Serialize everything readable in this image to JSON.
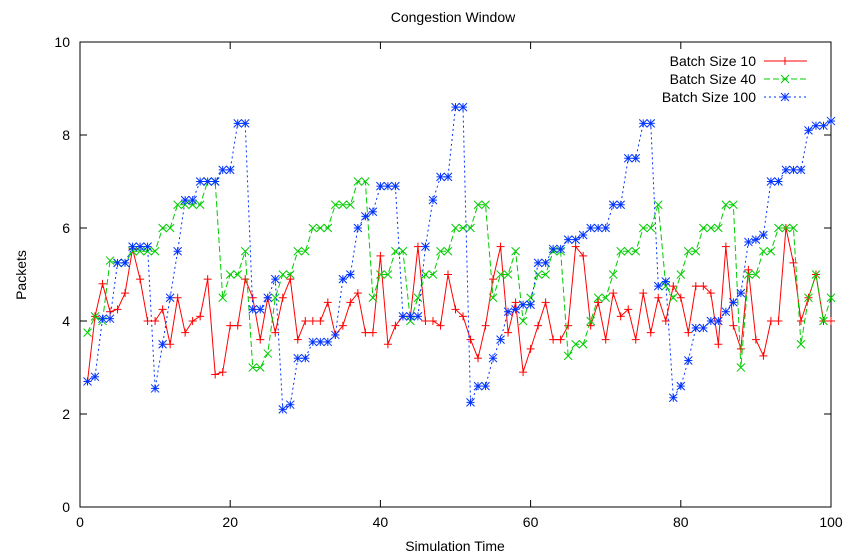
{
  "chart_data": {
    "type": "line",
    "title": "Congestion Window",
    "xlabel": "Simulation Time",
    "ylabel": "Packets",
    "xlim": [
      0,
      100
    ],
    "ylim": [
      0,
      10
    ],
    "xticks": [
      0,
      20,
      40,
      60,
      80,
      100
    ],
    "yticks": [
      0,
      2,
      4,
      6,
      8,
      10
    ],
    "xtick_labels": [
      "0",
      "20",
      "40",
      "60",
      "80",
      "100"
    ],
    "ytick_labels": [
      "0",
      "2",
      "4",
      "6",
      "8",
      "10"
    ],
    "grid": false,
    "legend_position": "top-right",
    "x": [
      1,
      2,
      3,
      4,
      5,
      6,
      7,
      8,
      9,
      10,
      11,
      12,
      13,
      14,
      15,
      16,
      17,
      18,
      19,
      20,
      21,
      22,
      23,
      24,
      25,
      26,
      27,
      28,
      29,
      30,
      31,
      32,
      33,
      34,
      35,
      36,
      37,
      38,
      39,
      40,
      41,
      42,
      43,
      44,
      45,
      46,
      47,
      48,
      49,
      50,
      51,
      52,
      53,
      54,
      55,
      56,
      57,
      58,
      59,
      60,
      61,
      62,
      63,
      64,
      65,
      66,
      67,
      68,
      69,
      70,
      71,
      72,
      73,
      74,
      75,
      76,
      77,
      78,
      79,
      80,
      81,
      82,
      83,
      84,
      85,
      86,
      87,
      88,
      89,
      90,
      91,
      92,
      93,
      94,
      95,
      96,
      97,
      98,
      99,
      100
    ],
    "series": [
      {
        "name": "Batch Size 10",
        "color": "#ff0000",
        "marker": "plus",
        "dash": "solid",
        "values": [
          2.7,
          4.1,
          4.8,
          4.2,
          4.25,
          4.6,
          5.55,
          4.9,
          4.0,
          4.0,
          4.25,
          3.5,
          4.5,
          3.75,
          4.0,
          4.1,
          4.9,
          2.85,
          2.9,
          3.9,
          3.9,
          4.9,
          4.5,
          3.6,
          4.5,
          3.75,
          4.5,
          4.9,
          3.6,
          4.0,
          4.0,
          4.0,
          4.4,
          3.7,
          3.9,
          4.4,
          4.6,
          3.75,
          3.75,
          5.4,
          3.5,
          3.9,
          4.1,
          4.1,
          5.6,
          4.0,
          4.0,
          3.9,
          5.0,
          4.25,
          4.1,
          3.6,
          3.2,
          3.9,
          4.9,
          5.6,
          3.75,
          4.4,
          2.9,
          3.4,
          3.9,
          4.4,
          3.6,
          3.6,
          3.9,
          5.6,
          5.4,
          3.9,
          4.4,
          3.6,
          4.6,
          4.1,
          4.25,
          3.6,
          4.6,
          3.75,
          4.5,
          4.0,
          4.75,
          4.5,
          3.75,
          4.75,
          4.75,
          4.6,
          3.5,
          5.6,
          3.9,
          3.4,
          5.1,
          3.6,
          3.25,
          4.0,
          4.0,
          6.0,
          5.25,
          4.0,
          4.5,
          5.0,
          4.0,
          4.0
        ]
      },
      {
        "name": "Batch Size 40",
        "color": "#00cc00",
        "marker": "cross",
        "dash": "dashed",
        "values": [
          3.75,
          4.1,
          4.0,
          5.3,
          5.25,
          5.25,
          5.5,
          5.5,
          5.5,
          5.5,
          6.0,
          6.0,
          6.5,
          6.5,
          6.5,
          6.5,
          7.0,
          7.0,
          4.5,
          5.0,
          5.0,
          5.5,
          3.0,
          3.0,
          3.3,
          4.5,
          5.0,
          5.0,
          5.5,
          5.5,
          6.0,
          6.0,
          6.0,
          6.5,
          6.5,
          6.5,
          7.0,
          7.0,
          4.5,
          5.0,
          5.0,
          5.5,
          5.5,
          4.0,
          4.5,
          5.0,
          5.0,
          5.5,
          5.5,
          6.0,
          6.0,
          6.0,
          6.5,
          6.5,
          4.5,
          5.0,
          5.0,
          5.5,
          4.0,
          4.5,
          5.0,
          5.0,
          5.5,
          5.5,
          3.25,
          3.5,
          3.5,
          4.0,
          4.5,
          4.5,
          5.0,
          5.5,
          5.5,
          5.5,
          6.0,
          6.0,
          6.5,
          4.75,
          4.5,
          5.0,
          5.5,
          5.5,
          6.0,
          6.0,
          6.0,
          6.5,
          6.5,
          3.0,
          5.0,
          5.0,
          5.5,
          5.5,
          6.0,
          6.0,
          6.0,
          3.5,
          4.5,
          5.0,
          4.0,
          4.5
        ]
      },
      {
        "name": "Batch Size 100",
        "color": "#0033ff",
        "marker": "star",
        "dash": "dotted",
        "values": [
          2.7,
          2.8,
          4.05,
          4.05,
          5.25,
          5.25,
          5.6,
          5.6,
          5.6,
          2.55,
          3.5,
          4.5,
          5.5,
          6.6,
          6.6,
          7.0,
          7.0,
          7.0,
          7.25,
          7.25,
          8.25,
          8.25,
          4.25,
          4.25,
          4.5,
          4.9,
          2.1,
          2.2,
          3.2,
          3.2,
          3.55,
          3.55,
          3.55,
          3.7,
          4.9,
          5.0,
          6.0,
          6.25,
          6.35,
          6.9,
          6.9,
          6.9,
          4.1,
          4.1,
          4.1,
          5.6,
          6.6,
          7.1,
          7.1,
          8.6,
          8.6,
          2.25,
          2.6,
          2.6,
          3.2,
          3.6,
          4.2,
          4.25,
          4.35,
          4.35,
          5.25,
          5.25,
          5.55,
          5.55,
          5.75,
          5.75,
          5.85,
          6.0,
          6.0,
          6.0,
          6.5,
          6.5,
          7.5,
          7.5,
          8.25,
          8.25,
          4.75,
          4.85,
          2.35,
          2.6,
          3.15,
          3.85,
          3.85,
          4.0,
          4.0,
          4.2,
          4.4,
          4.6,
          5.7,
          5.75,
          5.85,
          7.0,
          7.0,
          7.25,
          7.25,
          7.25,
          8.1,
          8.2,
          8.2,
          8.3
        ]
      }
    ]
  }
}
